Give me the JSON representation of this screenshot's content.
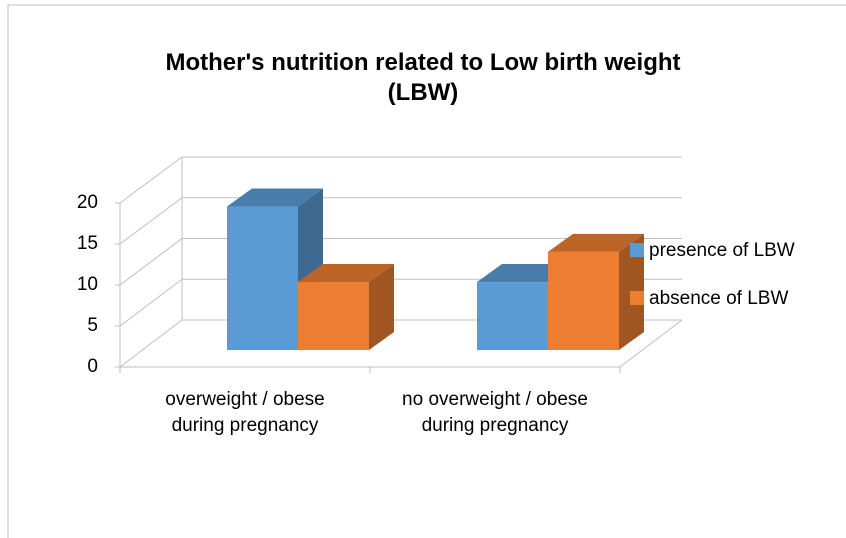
{
  "chart_data": {
    "type": "bar3d",
    "title": "Mother's nutrition related to Low birth weight (LBW)",
    "categories": [
      "overweight / obese during pregnancy",
      "no overweight / obese during pregnancy"
    ],
    "series": [
      {
        "name": "presence of LBW",
        "color": "#5b9bd5",
        "values": [
          19,
          9
        ]
      },
      {
        "name": "absence of LBW",
        "color": "#ed7d31",
        "values": [
          9,
          13
        ]
      }
    ],
    "ylim": [
      0,
      20
    ],
    "yticks": [
      0,
      5,
      10,
      15,
      20
    ],
    "grid": true,
    "legend": "right"
  }
}
